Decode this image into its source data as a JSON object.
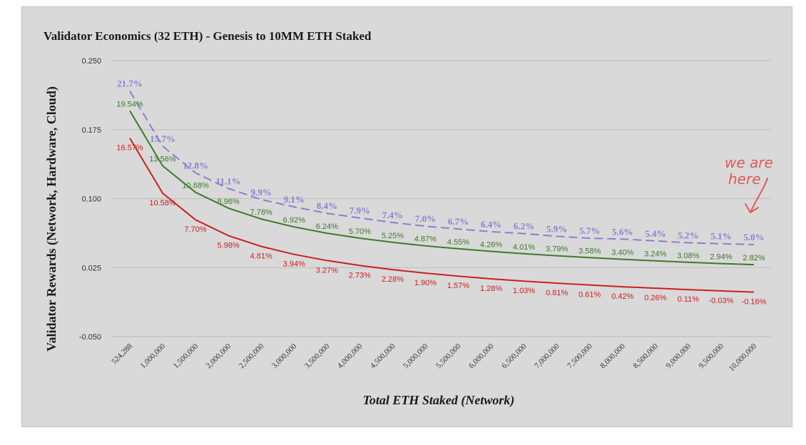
{
  "chart_data": {
    "type": "line",
    "title": "Validator Economics (32 ETH) - Genesis to 10MM ETH Staked",
    "xlabel": "Total ETH Staked (Network)",
    "ylabel": "Validator Rewards (Network, Hardware, Cloud)",
    "ylim": [
      -0.05,
      0.25
    ],
    "yticks": [
      "0.250",
      "0.175",
      "0.100",
      "0.025",
      "-0.050"
    ],
    "ytick_values": [
      0.25,
      0.175,
      0.1,
      0.025,
      -0.05
    ],
    "grid": true,
    "categories": [
      "524,288",
      "1,000,000",
      "1,500,000",
      "2,000,000",
      "2,500,000",
      "3,000,000",
      "3,500,000",
      "4,000,000",
      "4,500,000",
      "5,000,000",
      "5,500,000",
      "6,000,000",
      "6,500,000",
      "7,000,000",
      "7,500,000",
      "8,000,000",
      "8,500,000",
      "9,000,000",
      "9,500,000",
      "10,000,000"
    ],
    "series": [
      {
        "name": "Network",
        "color": "#8a7fcf",
        "style": "dashed",
        "values": [
          0.217,
          0.157,
          0.128,
          0.111,
          0.099,
          0.091,
          0.084,
          0.079,
          0.074,
          0.07,
          0.067,
          0.064,
          0.062,
          0.059,
          0.057,
          0.056,
          0.054,
          0.052,
          0.051,
          0.05
        ],
        "labels": [
          "21.7%",
          "15.7%",
          "12.8%",
          "11.1%",
          "9.9%",
          "9.1%",
          "8.4%",
          "7.9%",
          "7.4%",
          "7.0%",
          "6.7%",
          "6.4%",
          "6.2%",
          "5.9%",
          "5.7%",
          "5.6%",
          "5.4%",
          "5.2%",
          "5.1%",
          "5.0%"
        ]
      },
      {
        "name": "Hardware",
        "color": "#3d7a2a",
        "style": "solid",
        "values": [
          0.1954,
          0.1356,
          0.1068,
          0.0896,
          0.0778,
          0.0692,
          0.0624,
          0.057,
          0.0525,
          0.0487,
          0.0455,
          0.0426,
          0.0401,
          0.0379,
          0.0358,
          0.034,
          0.0324,
          0.0308,
          0.0294,
          0.0282
        ],
        "labels": [
          "19.54%",
          "13.56%",
          "10.68%",
          "8.96%",
          "7.78%",
          "6.92%",
          "6.24%",
          "5.70%",
          "5.25%",
          "4.87%",
          "4.55%",
          "4.26%",
          "4.01%",
          "3.79%",
          "3.58%",
          "3.40%",
          "3.24%",
          "3.08%",
          "2.94%",
          "2.82%"
        ]
      },
      {
        "name": "Cloud",
        "color": "#cc1f1f",
        "style": "solid",
        "values": [
          0.1657,
          0.1058,
          0.077,
          0.0598,
          0.0481,
          0.0394,
          0.0327,
          0.0273,
          0.0228,
          0.019,
          0.0157,
          0.0128,
          0.0103,
          0.0081,
          0.0061,
          0.0042,
          0.0026,
          0.0011,
          -0.0003,
          -0.0016
        ],
        "labels": [
          "16.57%",
          "10.58%",
          "7.70%",
          "5.98%",
          "4.81%",
          "3.94%",
          "3.27%",
          "2.73%",
          "2.28%",
          "1.90%",
          "1.57%",
          "1.28%",
          "1.03%",
          "0.81%",
          "0.61%",
          "0.42%",
          "0.26%",
          "0.11%",
          "-0.03%",
          "-0.16%"
        ]
      }
    ],
    "annotation": {
      "line1": "we are",
      "line2": "here",
      "color": "#e05a5a"
    }
  }
}
